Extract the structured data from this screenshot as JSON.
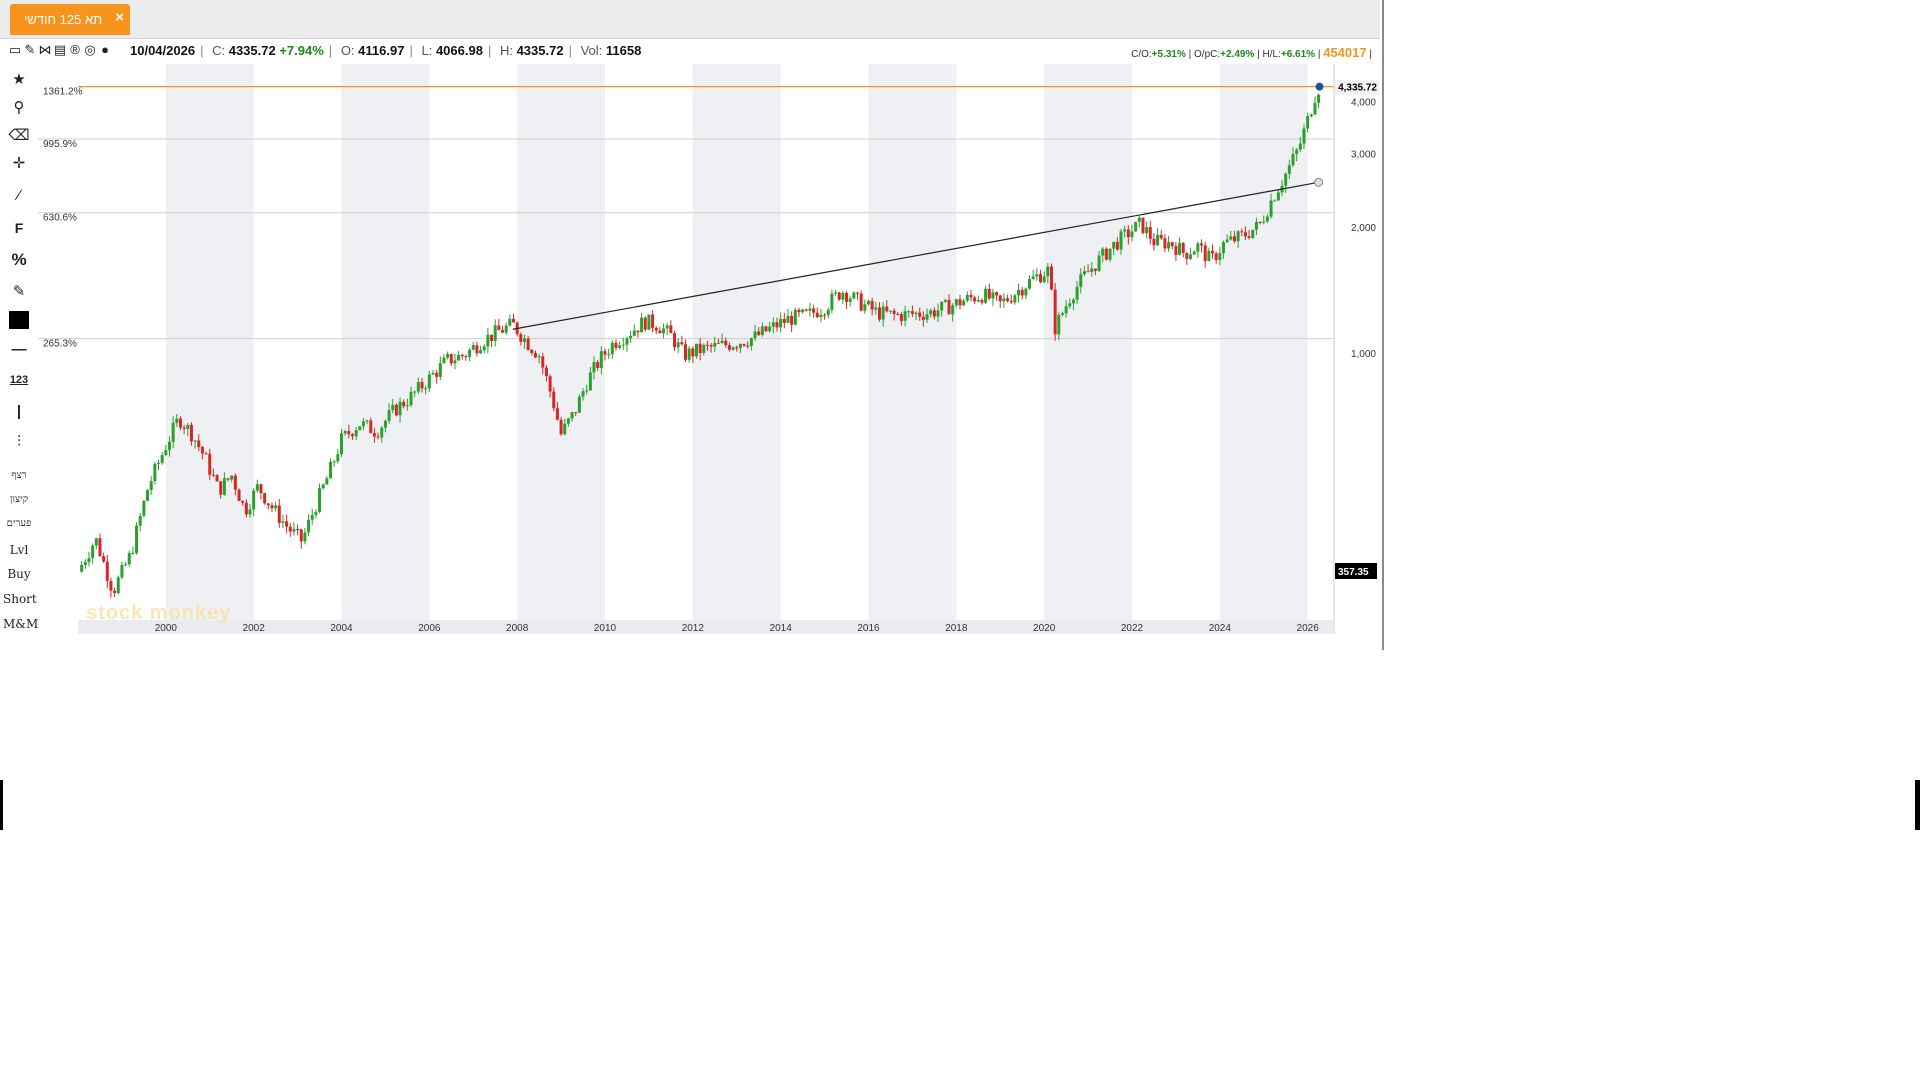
{
  "tab": {
    "title": "תא 125 חודשי",
    "close": "×"
  },
  "infobar": {
    "date": "10/04/2026",
    "close_label": "C:",
    "close_value": "4335.72",
    "change": "+7.94%",
    "open_label": "O:",
    "open_value": "4116.97",
    "low_label": "L:",
    "low_value": "4066.98",
    "high_label": "H:",
    "high_value": "4335.72",
    "vol_label": "Vol:",
    "vol_value": "11658",
    "co_label": "C/O:",
    "co_value": "+5.31%",
    "opc_label": "O/pC:",
    "opc_value": "+2.49%",
    "hl_label": "H/L:",
    "hl_value": "+6.61%",
    "id_value": "454017"
  },
  "toolbar": {
    "icons": [
      "star-icon",
      "search-icon",
      "eraser-icon",
      "crosshair-icon",
      "pencil-line-icon",
      "fibonacci-icon",
      "percent-icon",
      "edit-icon",
      "color-swatch-icon",
      "line-width-icon",
      "number-format-icon",
      "vertical-line-icon",
      "chart-type-icon"
    ],
    "labels": [
      "רצף",
      "קיצון",
      "פערים",
      "Lvl",
      "Buy",
      "Short",
      "M&M"
    ]
  },
  "watermark": "stock monkey",
  "colors": {
    "up": "#2ca02c",
    "down": "#d62728",
    "accent": "#f7941d",
    "band": "#eef0f4"
  },
  "chart_data": {
    "type": "candlestick",
    "title": "תא 125 חודשי",
    "scale": "log",
    "x_ticks": [
      "2000",
      "2002",
      "2004",
      "2006",
      "2008",
      "2010",
      "2012",
      "2014",
      "2016",
      "2018",
      "2020",
      "2022",
      "2024",
      "2026"
    ],
    "y_ticks": [
      {
        "value": 1000,
        "label": "1,000"
      },
      {
        "value": 2000,
        "label": "2,000"
      },
      {
        "value": 3000,
        "label": "3,000"
      },
      {
        "value": 4000,
        "label": "4,000"
      }
    ],
    "pct_ticks": [
      {
        "value": 4335.72,
        "label": "1361.2%"
      },
      {
        "value": 3250,
        "label": "995.9%"
      },
      {
        "value": 2166,
        "label": "630.6%"
      },
      {
        "value": 1083,
        "label": "265.3%"
      }
    ],
    "last_price_label": "4,335.72",
    "last_price": 4335.72,
    "marker_label": "357.35",
    "marker_value": 357.35,
    "trendline": [
      {
        "date": 2007.9,
        "value": 1140
      },
      {
        "date": 2026.25,
        "value": 2560
      }
    ],
    "anchors": [
      [
        1998.0,
        300
      ],
      [
        1998.4,
        360
      ],
      [
        1998.8,
        270
      ],
      [
        1999.2,
        330
      ],
      [
        1999.6,
        480
      ],
      [
        2000.0,
        600
      ],
      [
        2000.3,
        700
      ],
      [
        2000.6,
        640
      ],
      [
        2000.9,
        560
      ],
      [
        2001.2,
        470
      ],
      [
        2001.5,
        510
      ],
      [
        2001.8,
        420
      ],
      [
        2002.1,
        480
      ],
      [
        2002.4,
        430
      ],
      [
        2002.8,
        380
      ],
      [
        2003.1,
        355
      ],
      [
        2003.4,
        430
      ],
      [
        2003.7,
        510
      ],
      [
        2004.0,
        620
      ],
      [
        2004.4,
        680
      ],
      [
        2004.8,
        650
      ],
      [
        2005.2,
        730
      ],
      [
        2005.6,
        790
      ],
      [
        2006.0,
        870
      ],
      [
        2006.4,
        960
      ],
      [
        2006.8,
        990
      ],
      [
        2007.2,
        1070
      ],
      [
        2007.6,
        1130
      ],
      [
        2007.9,
        1170
      ],
      [
        2008.2,
        1070
      ],
      [
        2008.5,
        990
      ],
      [
        2008.8,
        780
      ],
      [
        2009.0,
        640
      ],
      [
        2009.3,
        720
      ],
      [
        2009.6,
        860
      ],
      [
        2009.9,
        970
      ],
      [
        2010.2,
        1060
      ],
      [
        2010.5,
        1110
      ],
      [
        2010.9,
        1190
      ],
      [
        2011.2,
        1170
      ],
      [
        2011.5,
        1100
      ],
      [
        2011.8,
        990
      ],
      [
        2012.2,
        1020
      ],
      [
        2012.6,
        1040
      ],
      [
        2013.0,
        1060
      ],
      [
        2013.4,
        1090
      ],
      [
        2013.8,
        1150
      ],
      [
        2014.2,
        1210
      ],
      [
        2014.6,
        1230
      ],
      [
        2015.0,
        1290
      ],
      [
        2015.4,
        1410
      ],
      [
        2015.8,
        1320
      ],
      [
        2016.2,
        1250
      ],
      [
        2016.6,
        1230
      ],
      [
        2017.0,
        1240
      ],
      [
        2017.4,
        1250
      ],
      [
        2017.8,
        1290
      ],
      [
        2018.2,
        1340
      ],
      [
        2018.6,
        1380
      ],
      [
        2019.0,
        1310
      ],
      [
        2019.4,
        1410
      ],
      [
        2019.8,
        1520
      ],
      [
        2020.1,
        1580
      ],
      [
        2020.25,
        1150
      ],
      [
        2020.6,
        1370
      ],
      [
        2020.9,
        1520
      ],
      [
        2021.2,
        1650
      ],
      [
        2021.6,
        1820
      ],
      [
        2021.9,
        1930
      ],
      [
        2022.2,
        2040
      ],
      [
        2022.5,
        1850
      ],
      [
        2022.9,
        1830
      ],
      [
        2023.2,
        1730
      ],
      [
        2023.5,
        1800
      ],
      [
        2023.8,
        1660
      ],
      [
        2024.1,
        1830
      ],
      [
        2024.5,
        1900
      ],
      [
        2024.9,
        2020
      ],
      [
        2025.2,
        2350
      ],
      [
        2025.5,
        2680
      ],
      [
        2025.8,
        3100
      ],
      [
        2026.0,
        3600
      ],
      [
        2026.15,
        4100
      ],
      [
        2026.27,
        4335.72
      ]
    ]
  }
}
